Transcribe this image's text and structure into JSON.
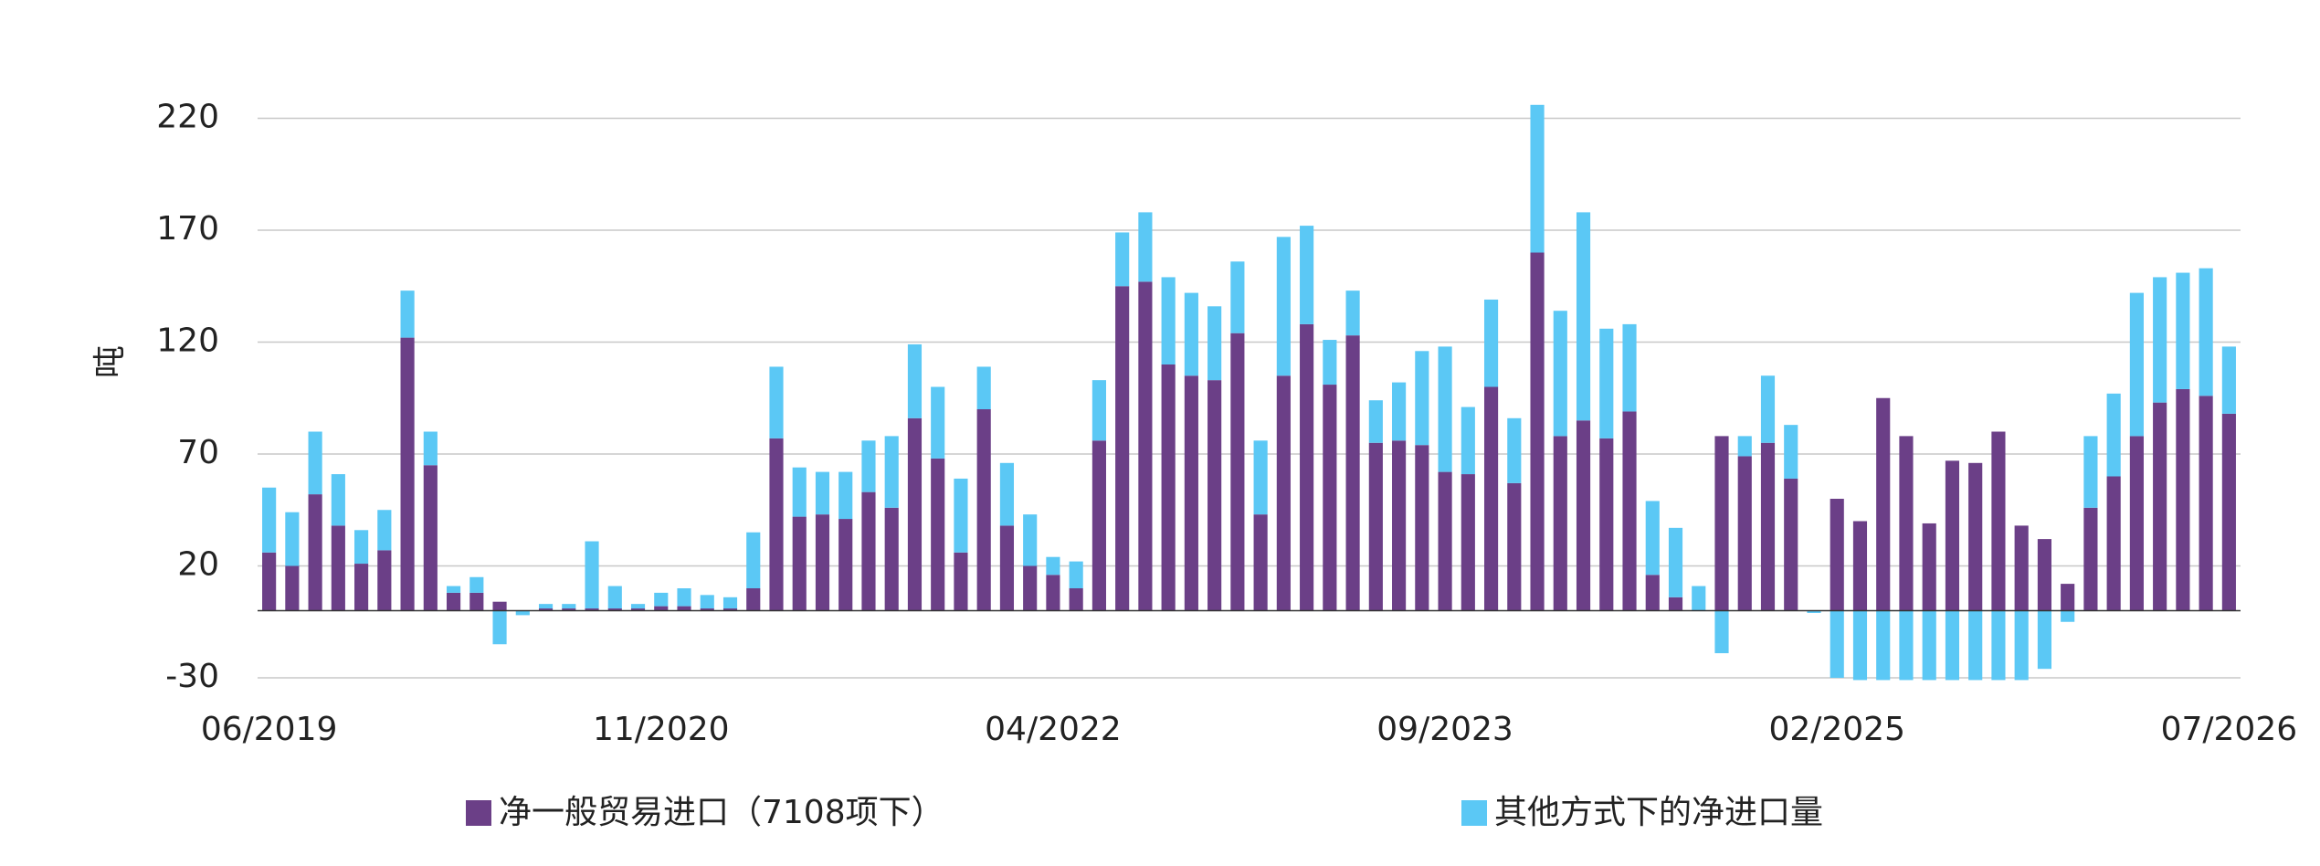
{
  "chart_data": {
    "type": "bar",
    "stacked": true,
    "y_label": "吨",
    "categories": [
      "06/2019",
      null,
      null,
      null,
      null,
      null,
      null,
      null,
      null,
      null,
      null,
      null,
      null,
      null,
      null,
      null,
      null,
      "11/2020",
      null,
      null,
      null,
      null,
      null,
      null,
      null,
      null,
      null,
      null,
      null,
      null,
      null,
      null,
      null,
      null,
      "04/2022",
      null,
      null,
      null,
      null,
      null,
      null,
      null,
      null,
      null,
      null,
      null,
      null,
      null,
      null,
      null,
      null,
      "09/2023",
      null,
      null,
      null,
      null,
      null,
      null,
      null,
      null,
      null,
      null,
      null,
      null,
      null,
      null,
      null,
      null,
      "02/2025",
      null,
      null,
      null,
      null,
      null,
      null,
      null,
      null,
      null,
      null,
      null,
      null,
      null,
      null,
      null,
      null,
      "07/2026"
    ],
    "series": [
      {
        "name": "净一般贸易进口（7108项下）",
        "color": "#6b3f87",
        "values": [
          26,
          20,
          52,
          38,
          21,
          27,
          122,
          65,
          8,
          8,
          4,
          0,
          1,
          1,
          1,
          1,
          1,
          2,
          2,
          1,
          1,
          10,
          77,
          42,
          43,
          41,
          53,
          46,
          86,
          68,
          26,
          90,
          38,
          20,
          16,
          10,
          76,
          145,
          147,
          110,
          105,
          103,
          124,
          43,
          105,
          128,
          101,
          123,
          75,
          76,
          74,
          62,
          61,
          100,
          57,
          160,
          78,
          85,
          77,
          89,
          16,
          6,
          0,
          78,
          69,
          75,
          59,
          0,
          50,
          40,
          95,
          78,
          39,
          67,
          66,
          80,
          38,
          32,
          12,
          46,
          60,
          78,
          93,
          99,
          96,
          88
        ]
      },
      {
        "name": "其他方式下的净进口量",
        "color": "#5bc8f5",
        "values": [
          29,
          24,
          28,
          23,
          15,
          18,
          21,
          15,
          3,
          7,
          -15,
          -2,
          2,
          2,
          30,
          10,
          2,
          6,
          8,
          6,
          5,
          25,
          32,
          22,
          19,
          21,
          23,
          32,
          33,
          32,
          33,
          19,
          28,
          23,
          8,
          12,
          27,
          24,
          31,
          39,
          37,
          33,
          32,
          33,
          62,
          44,
          20,
          20,
          19,
          26,
          42,
          56,
          30,
          39,
          29,
          66,
          56,
          93,
          49,
          39,
          33,
          31,
          11,
          -19,
          9,
          30,
          24,
          -1,
          -30,
          -31,
          -31,
          -31,
          -31,
          -31,
          -31,
          -31,
          -31,
          -26,
          -5,
          32,
          37,
          64,
          56,
          52,
          57,
          30
        ]
      }
    ],
    "ylim": [
      -30,
      230
    ],
    "yticks": [
      -30,
      20,
      70,
      120,
      170,
      220
    ],
    "grid": true,
    "legend": "bottom"
  }
}
